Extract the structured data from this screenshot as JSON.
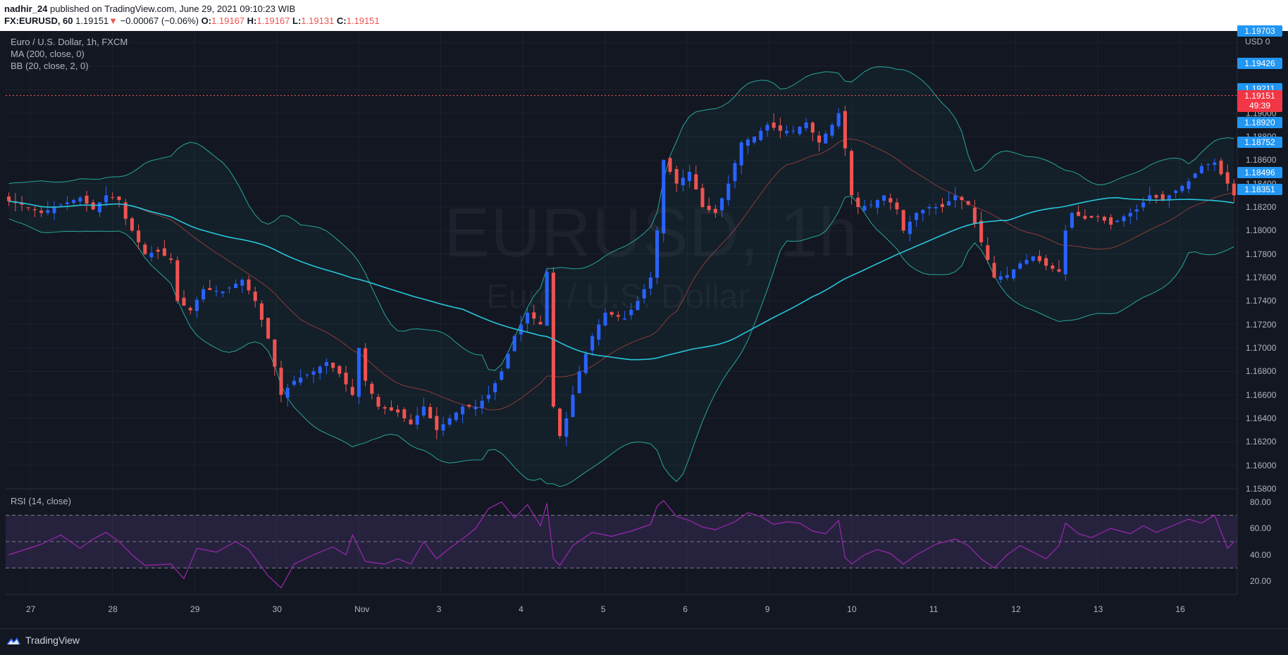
{
  "header": {
    "user": "nadhir_24",
    "published_text": "published on TradingView.com, June 29, 2021 09:10:23 WIB",
    "symbol": "FX:EURUSD, 60",
    "last": "1.19151",
    "change_arrow": "▼",
    "change": "−0.00067 (−0.06%)",
    "o_label": "O:",
    "o": "1.19167",
    "h_label": "H:",
    "h": "1.19167",
    "l_label": "L:",
    "l": "1.19131",
    "c_label": "C:",
    "c": "1.19151"
  },
  "legend": {
    "title": "Euro / U.S. Dollar, 1h, FXCM",
    "ma": "MA (200, close, 0)",
    "bb": "BB (20, close, 2, 0)",
    "rsi": "RSI (14, close)"
  },
  "watermark": {
    "symbol": "EURUSD, 1h",
    "name": "Euro / U.S. Dollar"
  },
  "price_axis": {
    "currency": "USD",
    "currency_suffix": "0",
    "ticks": [
      "1.19000",
      "1.18800",
      "1.18600",
      "1.18400",
      "1.18200",
      "1.18000",
      "1.17800",
      "1.17600",
      "1.17400",
      "1.17200",
      "1.17000",
      "1.16800",
      "1.16600",
      "1.16400",
      "1.16200",
      "1.16000",
      "1.15800"
    ],
    "labels": [
      {
        "value": "1.19703",
        "kind": "blue"
      },
      {
        "value": "1.19426",
        "kind": "blue"
      },
      {
        "value": "1.19211",
        "kind": "blue"
      },
      {
        "value": "1.19151",
        "countdown": "49:39",
        "kind": "red"
      },
      {
        "value": "1.18920",
        "kind": "blue"
      },
      {
        "value": "1.18752",
        "kind": "blue"
      },
      {
        "value": "1.18496",
        "kind": "blue"
      },
      {
        "value": "1.18351",
        "kind": "blue"
      }
    ]
  },
  "rsi_axis": {
    "ticks": [
      "80.00",
      "60.00",
      "40.00",
      "20.00"
    ]
  },
  "time_axis": {
    "labels": [
      "27",
      "28",
      "29",
      "30",
      "Nov",
      "3",
      "4",
      "5",
      "6",
      "9",
      "10",
      "11",
      "12",
      "13",
      "16"
    ]
  },
  "colors": {
    "background": "#131722",
    "up": "#2962ff",
    "down": "#ef5350",
    "ma": "#26c6da",
    "bb_band": "#26a69a",
    "bb_basis": "#8d3b3b",
    "rsi": "#9c27b0"
  },
  "footer": {
    "brand": "TradingView",
    "logo_icon": "tradingview-logo-icon"
  },
  "chart_data": {
    "type": "candlestick",
    "symbol": "EURUSD",
    "timeframe": "1h",
    "ylim": [
      1.158,
      1.197
    ],
    "x_labels": [
      "27",
      "28",
      "29",
      "30",
      "Nov",
      "3",
      "4",
      "5",
      "6",
      "9",
      "10",
      "11",
      "12",
      "13",
      "16"
    ],
    "anchors": [
      [
        0,
        1.1825
      ],
      [
        2,
        1.1822
      ],
      [
        5,
        1.1815
      ],
      [
        8,
        1.1822
      ],
      [
        11,
        1.1828
      ],
      [
        13,
        1.1818
      ],
      [
        15,
        1.183
      ],
      [
        17,
        1.1826
      ],
      [
        18,
        1.181
      ],
      [
        21,
        1.178
      ],
      [
        23,
        1.1782
      ],
      [
        25,
        1.1775
      ],
      [
        26,
        1.174
      ],
      [
        28,
        1.1732
      ],
      [
        30,
        1.175
      ],
      [
        33,
        1.1748
      ],
      [
        36,
        1.1758
      ],
      [
        38,
        1.174
      ],
      [
        40,
        1.1708
      ],
      [
        42,
        1.166
      ],
      [
        44,
        1.1672
      ],
      [
        47,
        1.168
      ],
      [
        49,
        1.1688
      ],
      [
        51,
        1.1678
      ],
      [
        53,
        1.166
      ],
      [
        54,
        1.17
      ],
      [
        55,
        1.1672
      ],
      [
        57,
        1.165
      ],
      [
        60,
        1.1645
      ],
      [
        62,
        1.1635
      ],
      [
        64,
        1.165
      ],
      [
        66,
        1.163
      ],
      [
        68,
        1.164
      ],
      [
        70,
        1.165
      ],
      [
        72,
        1.165
      ],
      [
        74,
        1.166
      ],
      [
        76,
        1.168
      ],
      [
        78,
        1.171
      ],
      [
        80,
        1.173
      ],
      [
        82,
        1.172
      ],
      [
        83,
        1.1765
      ],
      [
        84,
        1.165
      ],
      [
        85,
        1.1625
      ],
      [
        86,
        1.164
      ],
      [
        88,
        1.168
      ],
      [
        90,
        1.171
      ],
      [
        92,
        1.173
      ],
      [
        95,
        1.1725
      ],
      [
        97,
        1.174
      ],
      [
        99,
        1.176
      ],
      [
        100,
        1.18
      ],
      [
        101,
        1.186
      ],
      [
        103,
        1.184
      ],
      [
        105,
        1.185
      ],
      [
        107,
        1.182
      ],
      [
        109,
        1.1815
      ],
      [
        111,
        1.184
      ],
      [
        113,
        1.1875
      ],
      [
        115,
        1.188
      ],
      [
        117,
        1.189
      ],
      [
        119,
        1.1885
      ],
      [
        121,
        1.1885
      ],
      [
        123,
        1.1892
      ],
      [
        125,
        1.1875
      ],
      [
        127,
        1.189
      ],
      [
        128,
        1.19
      ],
      [
        129,
        1.187
      ],
      [
        130,
        1.183
      ],
      [
        131,
        1.182
      ],
      [
        133,
        1.1822
      ],
      [
        135,
        1.183
      ],
      [
        137,
        1.1818
      ],
      [
        138,
        1.18
      ],
      [
        140,
        1.1815
      ],
      [
        142,
        1.182
      ],
      [
        144,
        1.182
      ],
      [
        146,
        1.183
      ],
      [
        148,
        1.1822
      ],
      [
        150,
        1.179
      ],
      [
        152,
        1.176
      ],
      [
        154,
        1.1762
      ],
      [
        156,
        1.1772
      ],
      [
        158,
        1.1778
      ],
      [
        160,
        1.177
      ],
      [
        162,
        1.1765
      ],
      [
        163,
        1.18
      ],
      [
        164,
        1.1815
      ],
      [
        166,
        1.181
      ],
      [
        168,
        1.1812
      ],
      [
        170,
        1.1805
      ],
      [
        172,
        1.1812
      ],
      [
        174,
        1.1818
      ],
      [
        176,
        1.183
      ],
      [
        178,
        1.1826
      ],
      [
        180,
        1.1834
      ],
      [
        182,
        1.1842
      ],
      [
        184,
        1.1855
      ],
      [
        186,
        1.1858
      ],
      [
        187,
        1.1848
      ],
      [
        188,
        1.184
      ],
      [
        189,
        1.183
      ]
    ],
    "rsi": {
      "levels": [
        70,
        50,
        30
      ],
      "ylim": [
        10,
        90
      ],
      "anchors": [
        [
          0,
          40
        ],
        [
          5,
          48
        ],
        [
          8,
          55
        ],
        [
          11,
          45
        ],
        [
          13,
          52
        ],
        [
          15,
          57
        ],
        [
          17,
          50
        ],
        [
          19,
          40
        ],
        [
          21,
          32
        ],
        [
          25,
          33
        ],
        [
          27,
          22
        ],
        [
          29,
          45
        ],
        [
          32,
          42
        ],
        [
          35,
          50
        ],
        [
          37,
          44
        ],
        [
          40,
          24
        ],
        [
          42,
          15
        ],
        [
          44,
          33
        ],
        [
          47,
          40
        ],
        [
          50,
          46
        ],
        [
          52,
          40
        ],
        [
          53,
          55
        ],
        [
          55,
          35
        ],
        [
          58,
          33
        ],
        [
          60,
          37
        ],
        [
          62,
          33
        ],
        [
          64,
          50
        ],
        [
          66,
          37
        ],
        [
          68,
          45
        ],
        [
          70,
          52
        ],
        [
          72,
          60
        ],
        [
          74,
          75
        ],
        [
          76,
          80
        ],
        [
          78,
          68
        ],
        [
          80,
          78
        ],
        [
          82,
          62
        ],
        [
          83,
          79
        ],
        [
          84,
          37
        ],
        [
          85,
          32
        ],
        [
          87,
          47
        ],
        [
          90,
          57
        ],
        [
          93,
          54
        ],
        [
          96,
          58
        ],
        [
          99,
          63
        ],
        [
          100,
          77
        ],
        [
          101,
          81
        ],
        [
          103,
          69
        ],
        [
          105,
          66
        ],
        [
          107,
          61
        ],
        [
          109,
          59
        ],
        [
          112,
          65
        ],
        [
          114,
          72
        ],
        [
          116,
          69
        ],
        [
          118,
          63
        ],
        [
          120,
          65
        ],
        [
          122,
          64
        ],
        [
          124,
          58
        ],
        [
          126,
          56
        ],
        [
          127,
          61
        ],
        [
          128,
          66
        ],
        [
          129,
          38
        ],
        [
          130,
          33
        ],
        [
          132,
          40
        ],
        [
          134,
          44
        ],
        [
          136,
          41
        ],
        [
          138,
          33
        ],
        [
          140,
          40
        ],
        [
          143,
          48
        ],
        [
          146,
          52
        ],
        [
          148,
          47
        ],
        [
          150,
          37
        ],
        [
          152,
          30
        ],
        [
          154,
          40
        ],
        [
          156,
          47
        ],
        [
          158,
          42
        ],
        [
          160,
          37
        ],
        [
          162,
          47
        ],
        [
          163,
          64
        ],
        [
          165,
          56
        ],
        [
          167,
          53
        ],
        [
          170,
          60
        ],
        [
          173,
          56
        ],
        [
          175,
          62
        ],
        [
          177,
          57
        ],
        [
          180,
          63
        ],
        [
          182,
          67
        ],
        [
          184,
          64
        ],
        [
          186,
          70
        ],
        [
          188,
          45
        ],
        [
          189,
          50
        ]
      ]
    }
  }
}
